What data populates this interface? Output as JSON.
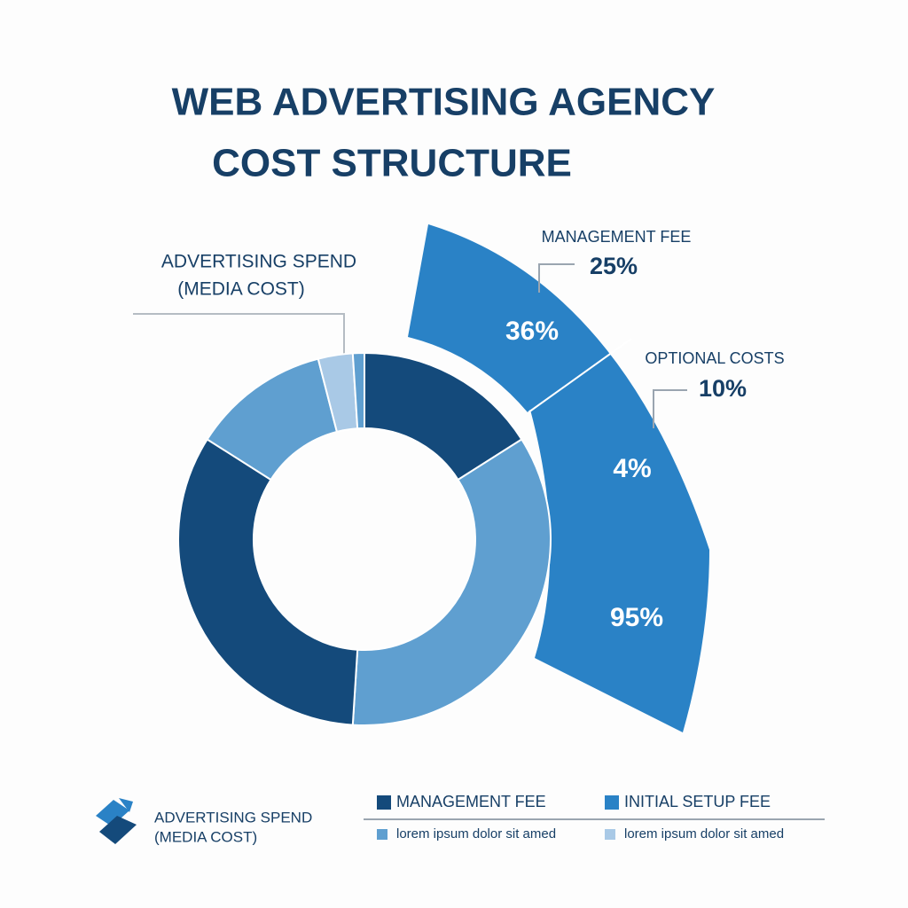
{
  "chart_data": {
    "type": "donut",
    "title_lines": [
      "WEB ADVERTISING AGENCY",
      "COST STRUCTURE"
    ],
    "values": [
      16,
      35,
      33,
      12,
      3,
      1
    ],
    "colors": [
      "#144a7b",
      "#5f9fd0",
      "#144a7b",
      "#5f9fd0",
      "#a9c9e6",
      "#5f9fd0"
    ],
    "outer_labels": [
      "36%",
      "4%",
      "95%"
    ],
    "outer_color": "#2a82c6",
    "annotations": [
      {
        "lines": [
          "MANAGEMENT FEE",
          "25%"
        ]
      },
      {
        "lines": [
          "OPTIONAL COSTS",
          "10%"
        ]
      },
      {
        "lines": [
          "ADVERTISING SPEND",
          "(MEDIA COST)"
        ]
      }
    ],
    "legend": [
      {
        "label": "MANAGEMENT FEE",
        "color": "#144a7b"
      },
      {
        "label": "INITIAL SETUP FEE",
        "color": "#2a82c6"
      },
      {
        "label": "lorem ipsum dolor sit amed",
        "color": "#5f9fd0"
      },
      {
        "label": "lorem ipsum dolor sit amed",
        "color": "#a9c9e6"
      }
    ],
    "footer_lines": [
      "ADVERTISING SPEND",
      "(MEDIA COST)"
    ]
  }
}
